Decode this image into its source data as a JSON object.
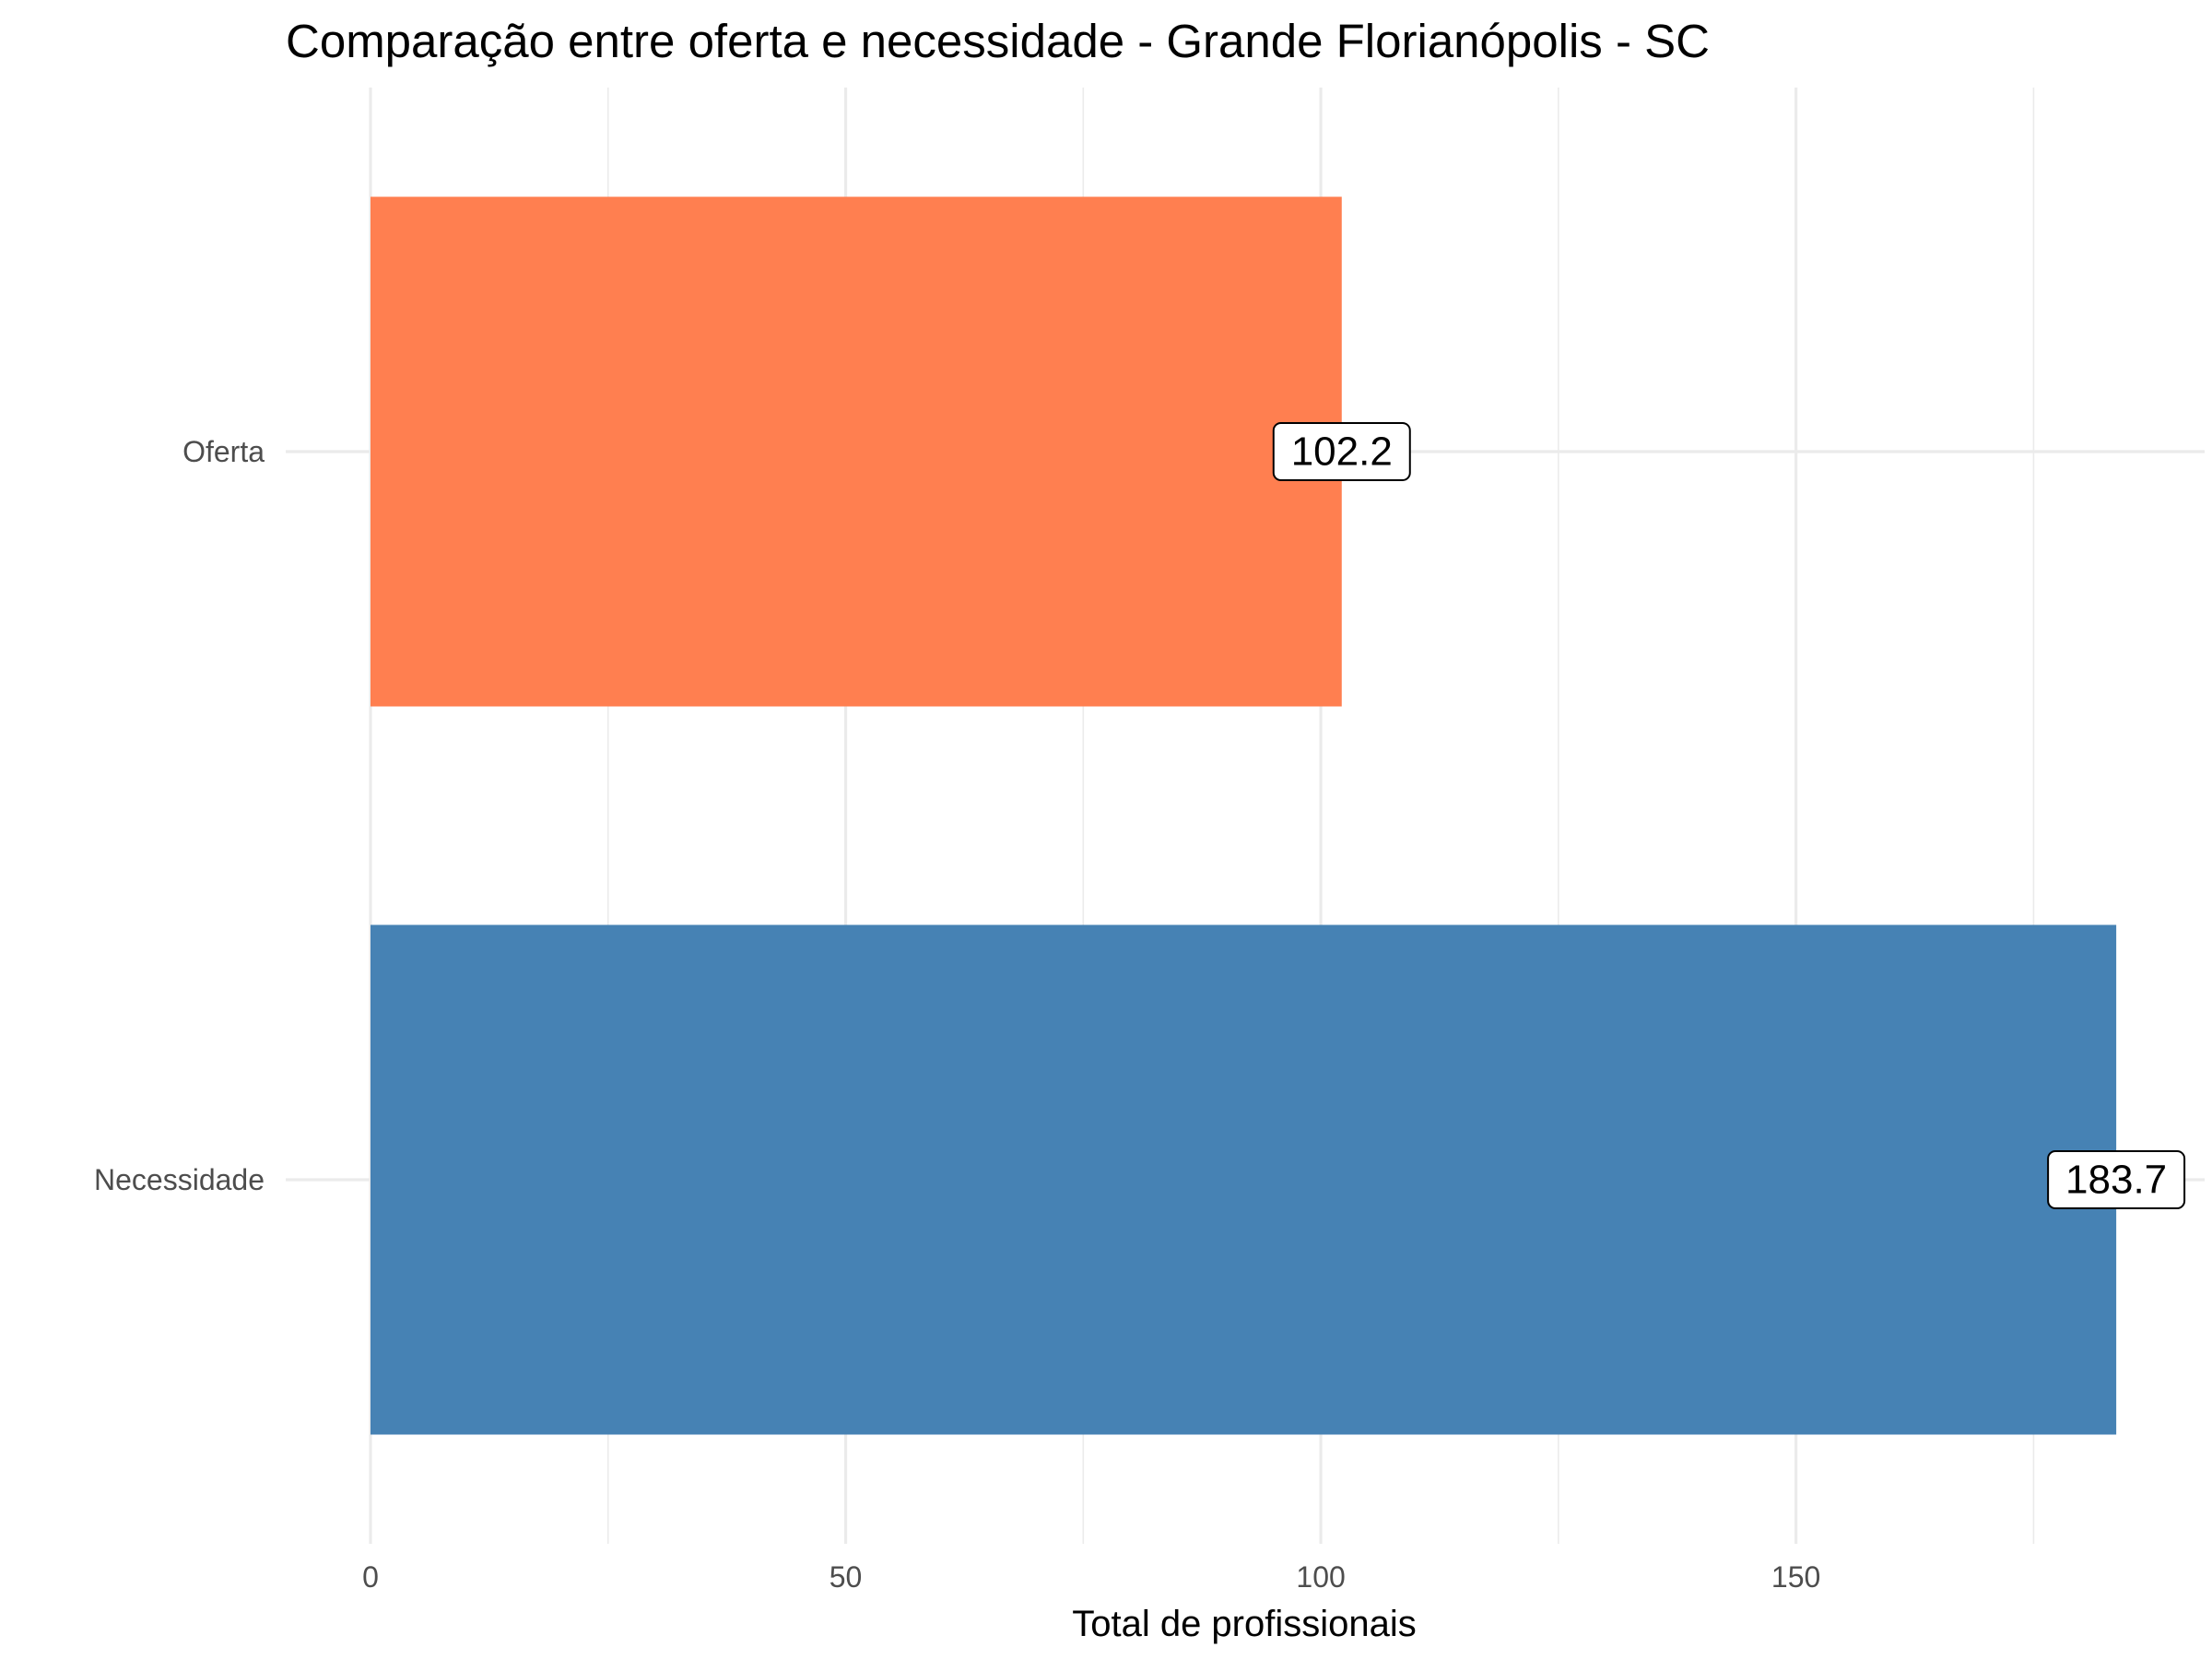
{
  "chart_data": {
    "type": "bar",
    "orientation": "horizontal",
    "title": "Comparação entre oferta e necessidade - Grande Florianópolis - SC",
    "xlabel": "Total de profissionais",
    "ylabel": "",
    "categories": [
      "Oferta",
      "Necessidade"
    ],
    "values": [
      102.2,
      183.7
    ],
    "value_labels": [
      "102.2",
      "183.7"
    ],
    "colors": [
      "#FF7F50",
      "#4682B4"
    ],
    "xlim": [
      0,
      193
    ],
    "x_ticks": [
      0,
      50,
      100,
      150
    ],
    "x_tick_labels": [
      "0",
      "50",
      "100",
      "150"
    ],
    "grid": true,
    "legend": "none"
  }
}
